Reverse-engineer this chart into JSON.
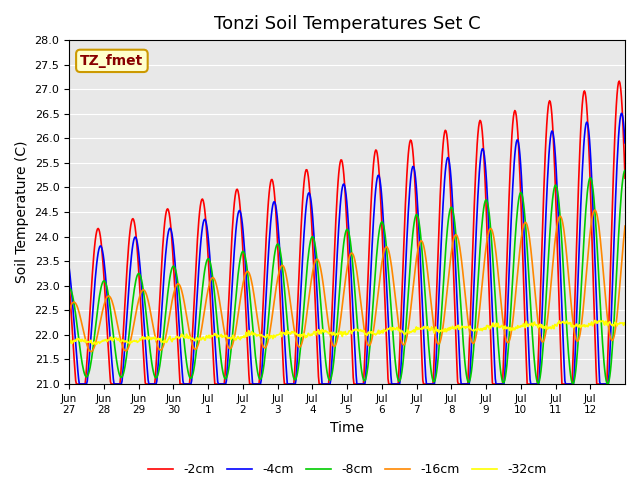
{
  "title": "Tonzi Soil Temperatures Set C",
  "xlabel": "Time",
  "ylabel": "Soil Temperature (C)",
  "ylim": [
    21.0,
    28.0
  ],
  "yticks": [
    21.0,
    21.5,
    22.0,
    22.5,
    23.0,
    23.5,
    24.0,
    24.5,
    25.0,
    25.5,
    26.0,
    26.5,
    27.0,
    27.5,
    28.0
  ],
  "xtick_labels": [
    "Jun\n27",
    "Jun\n28",
    "Jun\n29",
    "Jun\n30",
    "Jul\n1",
    "Jul\n2",
    "Jul\n3",
    "Jul\n4",
    "Jul\n5",
    "Jul\n6",
    "Jul\n7",
    "Jul\n8",
    "Jul\n9",
    "Jul\n10",
    "Jul\n11",
    "Jul\n12"
  ],
  "annotation_text": "TZ_fmet",
  "annotation_box_color": "#ffffcc",
  "annotation_box_edgecolor": "#cc9900",
  "lines": [
    {
      "label": "-2cm",
      "color": "#ff0000",
      "lw": 1.2
    },
    {
      "label": "-4cm",
      "color": "#0000ff",
      "lw": 1.2
    },
    {
      "label": "-8cm",
      "color": "#00cc00",
      "lw": 1.2
    },
    {
      "label": "-16cm",
      "color": "#ff8800",
      "lw": 1.2
    },
    {
      "label": "-32cm",
      "color": "#ffff00",
      "lw": 1.2
    }
  ],
  "bg_color": "#e8e8e8",
  "title_fontsize": 13,
  "axis_label_fontsize": 10,
  "legend_fontsize": 9
}
